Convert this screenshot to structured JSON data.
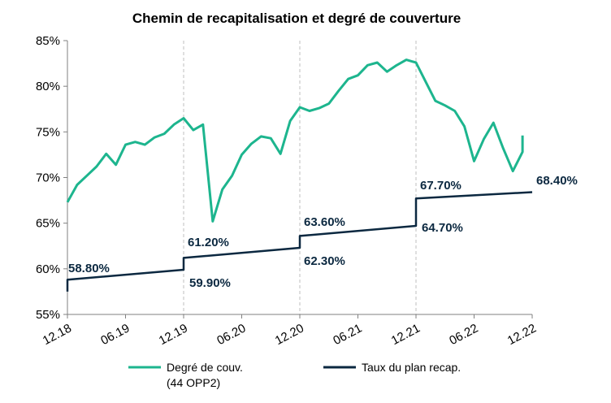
{
  "chart_data": {
    "type": "line",
    "title": "Chemin de recapitalisation et degré de couverture",
    "xlabel": "",
    "ylabel": "",
    "x_ticks": [
      "12.18",
      "06.19",
      "12.19",
      "06.20",
      "12.20",
      "06.21",
      "12.21",
      "06.22",
      "12.22"
    ],
    "x_gridlines_at": [
      "12.19",
      "12.20",
      "12.21"
    ],
    "y_ticks": [
      "55%",
      "60%",
      "65%",
      "70%",
      "75%",
      "80%",
      "85%"
    ],
    "ylim": [
      55,
      85
    ],
    "grid": "vertical dashed at year-ends",
    "legend_position": "bottom",
    "series": [
      {
        "name": "Degré de couv.",
        "name_line2": "(44 OPP2)",
        "color": "#1db58e",
        "points": [
          [
            "12.18",
            67.3
          ],
          [
            "01.19",
            69.2
          ],
          [
            "02.19",
            70.2
          ],
          [
            "03.19",
            71.2
          ],
          [
            "04.19",
            72.6
          ],
          [
            "05.19",
            71.4
          ],
          [
            "06.19",
            73.6
          ],
          [
            "07.19",
            73.9
          ],
          [
            "08.19",
            73.6
          ],
          [
            "09.19",
            74.4
          ],
          [
            "10.19",
            74.8
          ],
          [
            "11.19",
            75.8
          ],
          [
            "12.19",
            76.5
          ],
          [
            "01.20",
            75.2
          ],
          [
            "02.20",
            75.8
          ],
          [
            "03.20",
            65.2
          ],
          [
            "04.20",
            68.7
          ],
          [
            "05.20",
            70.2
          ],
          [
            "06.20",
            72.5
          ],
          [
            "07.20",
            73.7
          ],
          [
            "08.20",
            74.5
          ],
          [
            "09.20",
            74.3
          ],
          [
            "10.20",
            72.6
          ],
          [
            "11.20",
            76.2
          ],
          [
            "12.20",
            77.7
          ],
          [
            "01.21",
            77.3
          ],
          [
            "02.21",
            77.6
          ],
          [
            "03.21",
            78.1
          ],
          [
            "04.21",
            79.5
          ],
          [
            "05.21",
            80.8
          ],
          [
            "06.21",
            81.2
          ],
          [
            "07.21",
            82.3
          ],
          [
            "08.21",
            82.6
          ],
          [
            "09.21",
            81.6
          ],
          [
            "10.21",
            82.3
          ],
          [
            "11.21",
            82.9
          ],
          [
            "12.21",
            82.6
          ],
          [
            "01.22",
            80.5
          ],
          [
            "02.22",
            78.4
          ],
          [
            "03.22",
            77.9
          ],
          [
            "04.22",
            77.3
          ],
          [
            "05.22",
            75.6
          ],
          [
            "06.22",
            71.8
          ],
          [
            "07.22",
            74.2
          ],
          [
            "08.22",
            76.0
          ],
          [
            "09.22",
            73.2
          ],
          [
            "10.22",
            70.7
          ],
          [
            "11.22",
            72.8
          ],
          [
            "11.22 ",
            74.6
          ]
        ]
      },
      {
        "name": "Taux du plan recap.",
        "color": "#0b2840",
        "points": [
          [
            "12.18",
            57.5
          ],
          [
            "12.18",
            58.8
          ],
          [
            "12.19",
            59.9
          ],
          [
            "12.19",
            61.2
          ],
          [
            "12.20",
            62.3
          ],
          [
            "12.20",
            63.6
          ],
          [
            "12.21",
            64.7
          ],
          [
            "12.21",
            67.7
          ],
          [
            "12.22",
            68.4
          ]
        ]
      }
    ],
    "annotations": [
      "58.80%",
      "61.20%",
      "59.90%",
      "63.60%",
      "62.30%",
      "67.70%",
      "64.70%",
      "68.40%"
    ]
  }
}
